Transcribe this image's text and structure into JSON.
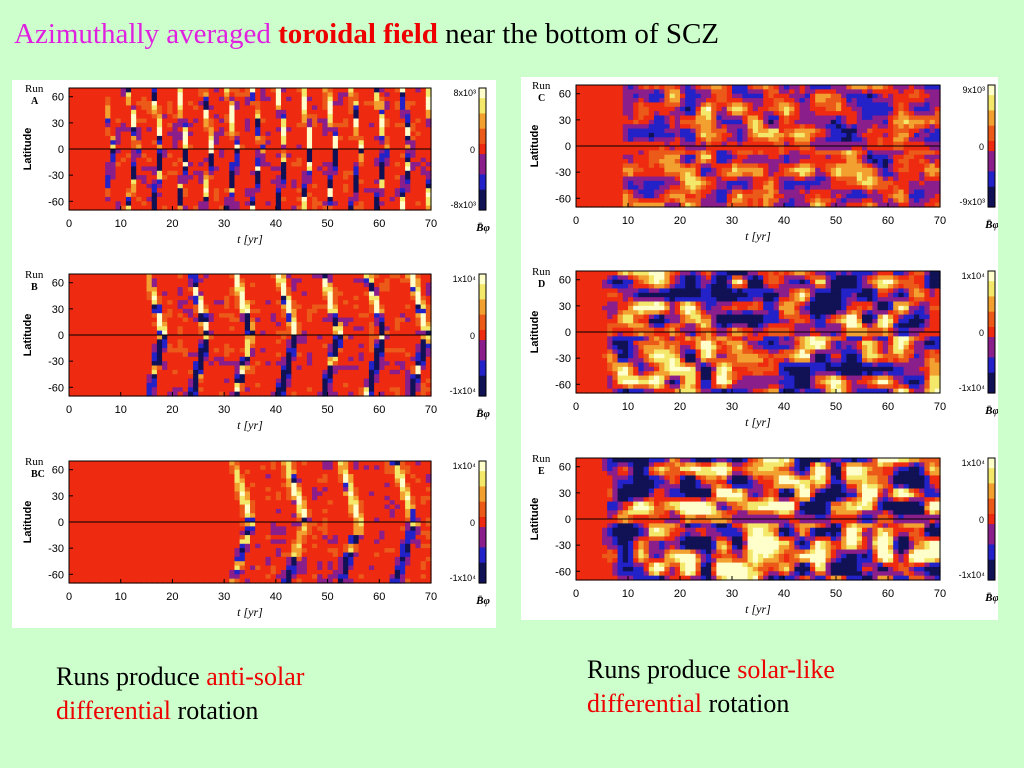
{
  "header": {
    "title_part1": "Azimuthally averaged",
    "title_part2": "toroidal field",
    "title_part3": "near the bottom of SCZ",
    "colors": {
      "part1": "#e020e0",
      "part2": "#ee0000",
      "part3": "#000000"
    }
  },
  "captions": {
    "left": {
      "line1_a": "Runs produce",
      "line1_b": "anti-solar",
      "line2_a": "differential",
      "line2_b": "rotation"
    },
    "right": {
      "line1_a": "Runs produce",
      "line1_b": "solar-like",
      "line2_a": "differential",
      "line2_b": "rotation"
    }
  },
  "chart_data": [
    {
      "type": "heatmap",
      "run_label": "Run",
      "run_id": "A",
      "xlabel": "t  [yr]",
      "ylabel": "Latitude",
      "xlim": [
        0,
        70
      ],
      "ylim": [
        -70,
        70
      ],
      "xticks": [
        0,
        10,
        20,
        30,
        40,
        50,
        60,
        70
      ],
      "yticks": [
        60,
        30,
        0,
        -30,
        -60
      ],
      "colorbar": {
        "max_label": "8x10³",
        "zero_label": "0",
        "min_label": "-8x10³",
        "title": "B̄φ"
      },
      "field": {
        "onset_yr": 6,
        "pattern": "anti-solar",
        "wave_period_yr": 4.8,
        "blob_strength": 1.0
      }
    },
    {
      "type": "heatmap",
      "run_label": "Run",
      "run_id": "B",
      "xlabel": "t  [yr]",
      "ylabel": "Latitude",
      "xlim": [
        0,
        70
      ],
      "ylim": [
        -70,
        70
      ],
      "xticks": [
        0,
        10,
        20,
        30,
        40,
        50,
        60,
        70
      ],
      "yticks": [
        60,
        30,
        0,
        -30,
        -60
      ],
      "colorbar": {
        "max_label": "1x10⁴",
        "zero_label": "0",
        "min_label": "-1x10⁴",
        "title": "B̄φ"
      },
      "field": {
        "onset_yr": 14,
        "pattern": "anti-solar",
        "wave_period_yr": 8.5,
        "blob_strength": 1.0
      }
    },
    {
      "type": "heatmap",
      "run_label": "Run",
      "run_id": "BC",
      "xlabel": "t  [yr]",
      "ylabel": "Latitude",
      "xlim": [
        0,
        70
      ],
      "ylim": [
        -70,
        70
      ],
      "xticks": [
        0,
        10,
        20,
        30,
        40,
        50,
        60,
        70
      ],
      "yticks": [
        60,
        30,
        0,
        -30,
        -60
      ],
      "colorbar": {
        "max_label": "1x10⁴",
        "zero_label": "0",
        "min_label": "-1x10⁴",
        "title": "B̄φ"
      },
      "field": {
        "onset_yr": 30,
        "pattern": "anti-solar",
        "wave_period_yr": 10.5,
        "blob_strength": 0.8
      }
    },
    {
      "type": "heatmap",
      "run_label": "Run",
      "run_id": "C",
      "xlabel": "t  [yr]",
      "ylabel": "Latitude",
      "xlim": [
        0,
        70
      ],
      "ylim": [
        -70,
        70
      ],
      "xticks": [
        0,
        10,
        20,
        30,
        40,
        50,
        60,
        70
      ],
      "yticks": [
        60,
        30,
        0,
        -30,
        -60
      ],
      "colorbar": {
        "max_label": "9x10³",
        "zero_label": "0",
        "min_label": "-9x10³",
        "title": "B̄φ"
      },
      "field": {
        "onset_yr": 8,
        "pattern": "solar-like",
        "wave_period_yr": 30,
        "blob_strength": 0.6
      }
    },
    {
      "type": "heatmap",
      "run_label": "Run",
      "run_id": "D",
      "xlabel": "t  [yr]",
      "ylabel": "Latitude",
      "xlim": [
        0,
        70
      ],
      "ylim": [
        -70,
        70
      ],
      "xticks": [
        0,
        10,
        20,
        30,
        40,
        50,
        60,
        70
      ],
      "yticks": [
        60,
        30,
        0,
        -30,
        -60
      ],
      "colorbar": {
        "max_label": "1x10⁴",
        "zero_label": "0",
        "min_label": "-1x10⁴",
        "title": "B̄φ"
      },
      "field": {
        "onset_yr": 5,
        "pattern": "solar-like",
        "wave_period_yr": 9,
        "blob_strength": 1.0
      }
    },
    {
      "type": "heatmap",
      "run_label": "Run",
      "run_id": "E",
      "xlabel": "t  [yr]",
      "ylabel": "Latitude",
      "xlim": [
        0,
        70
      ],
      "ylim": [
        -70,
        70
      ],
      "xticks": [
        0,
        10,
        20,
        30,
        40,
        50,
        60,
        70
      ],
      "yticks": [
        60,
        30,
        0,
        -30,
        -60
      ],
      "colorbar": {
        "max_label": "1x10⁴",
        "zero_label": "0",
        "min_label": "-1x10⁴",
        "title": "B̄φ"
      },
      "field": {
        "onset_yr": 5,
        "pattern": "solar-like",
        "wave_period_yr": 8,
        "blob_strength": 1.2
      }
    }
  ]
}
